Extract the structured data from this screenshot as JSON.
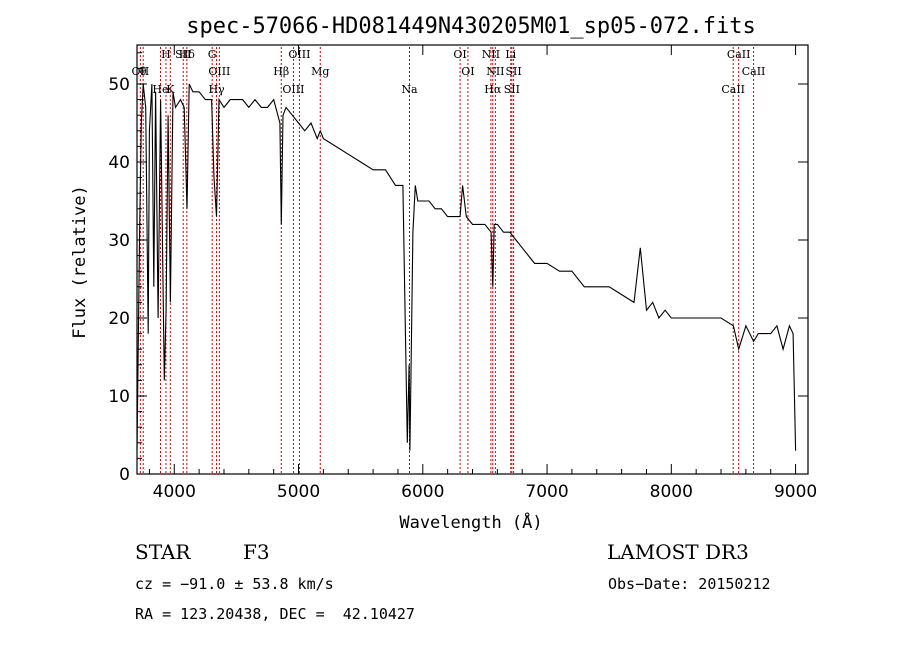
{
  "chart_data": {
    "type": "line",
    "title": "spec-57066-HD081449N430205M01_sp05-072.fits",
    "xlabel": "Wavelength (Å)",
    "ylabel": "Flux (relative)",
    "xlim": [
      3700,
      9100
    ],
    "ylim": [
      0,
      55
    ],
    "xticks": [
      4000,
      5000,
      6000,
      7000,
      8000,
      9000
    ],
    "yticks": [
      0,
      10,
      20,
      30,
      40,
      50
    ],
    "grid": false,
    "series": [
      {
        "name": "spectrum",
        "x": [
          3700,
          3720,
          3735,
          3750,
          3770,
          3790,
          3800,
          3820,
          3835,
          3850,
          3870,
          3890,
          3920,
          3934,
          3950,
          3969,
          3990,
          4010,
          4050,
          4080,
          4102,
          4120,
          4150,
          4200,
          4250,
          4300,
          4320,
          4340,
          4360,
          4400,
          4450,
          4500,
          4550,
          4600,
          4650,
          4700,
          4750,
          4800,
          4850,
          4861,
          4875,
          4900,
          4950,
          5000,
          5050,
          5100,
          5150,
          5175,
          5200,
          5300,
          5400,
          5500,
          5600,
          5700,
          5780,
          5840,
          5875,
          5890,
          5896,
          5905,
          5920,
          5940,
          5960,
          5990,
          6050,
          6100,
          6150,
          6200,
          6250,
          6300,
          6320,
          6350,
          6400,
          6450,
          6500,
          6550,
          6563,
          6575,
          6600,
          6650,
          6700,
          6750,
          6800,
          6850,
          6900,
          7000,
          7100,
          7200,
          7300,
          7400,
          7500,
          7600,
          7700,
          7750,
          7800,
          7850,
          7900,
          7950,
          8000,
          8100,
          8200,
          8300,
          8400,
          8500,
          8542,
          8600,
          8662,
          8700,
          8800,
          8850,
          8900,
          8950,
          8980,
          9000
        ],
        "y": [
          3,
          30,
          45,
          50,
          47,
          18,
          44,
          50,
          24,
          49,
          20,
          48,
          12,
          21,
          46,
          22,
          49,
          47,
          48,
          47,
          34,
          50,
          49,
          49,
          48,
          48,
          38,
          33,
          48,
          47,
          48,
          48,
          48,
          47,
          48,
          47,
          47,
          48,
          45,
          32,
          46,
          47,
          46,
          45,
          44,
          45,
          43,
          44,
          43,
          42,
          41,
          40,
          39,
          39,
          37,
          37,
          4,
          14,
          3,
          13,
          31,
          37,
          35,
          35,
          35,
          34,
          34,
          33,
          33,
          33,
          37,
          33,
          32,
          32,
          32,
          31,
          24,
          32,
          32,
          31,
          31,
          30,
          29,
          28,
          27,
          27,
          26,
          26,
          24,
          24,
          24,
          23,
          22,
          29,
          21,
          22,
          20,
          21,
          20,
          20,
          20,
          20,
          20,
          19,
          16,
          19,
          17,
          18,
          18,
          19,
          16,
          19,
          18,
          3
        ]
      }
    ],
    "line_markers": [
      {
        "label": "CaII H",
        "wave": 3933,
        "text": "H"
      },
      {
        "label": "θ",
        "wave": 3750,
        "text": "θ"
      },
      {
        "label": "K",
        "wave": 3968,
        "text": "K"
      },
      {
        "label": "Hδ",
        "wave": 4101,
        "text": "Hδ"
      },
      {
        "label": "OII",
        "wave": 3727,
        "text": "OII"
      },
      {
        "label": "He",
        "wave": 3889,
        "text": "He"
      },
      {
        "label": "SII",
        "wave": 4072,
        "text": "SII"
      },
      {
        "label": "OIII",
        "wave": 4363,
        "text": "OIII"
      },
      {
        "label": "Hγ",
        "wave": 4340,
        "text": "Hγ"
      },
      {
        "label": "G",
        "wave": 4305,
        "text": "G"
      },
      {
        "label": "Hβ",
        "wave": 4861,
        "text": "Hβ"
      },
      {
        "label": "OIII",
        "wave": 4959,
        "text": "OIII"
      },
      {
        "label": "OIII",
        "wave": 5007,
        "text": "OIII"
      },
      {
        "label": "Mg",
        "wave": 5175,
        "text": "Mg"
      },
      {
        "label": "Na",
        "wave": 5893,
        "text": "Na"
      },
      {
        "label": "OI",
        "wave": 6300,
        "text": "OI"
      },
      {
        "label": "OI",
        "wave": 6363,
        "text": "OI"
      },
      {
        "label": "Hα",
        "wave": 6563,
        "text": "Hα"
      },
      {
        "label": "NII",
        "wave": 6548,
        "text": "NII"
      },
      {
        "label": "NII",
        "wave": 6584,
        "text": "NII"
      },
      {
        "label": "SII",
        "wave": 6717,
        "text": "SII"
      },
      {
        "label": "Li",
        "wave": 6708,
        "text": "Li"
      },
      {
        "label": "SII",
        "wave": 6731,
        "text": "SII"
      },
      {
        "label": "CaII",
        "wave": 8498,
        "text": "CaII"
      },
      {
        "label": "CaII",
        "wave": 8542,
        "text": "CaII"
      },
      {
        "label": "CaII",
        "wave": 8662,
        "text": "CaII"
      }
    ],
    "marker_color": "#cc0000"
  },
  "info": {
    "obj_class": "STAR",
    "subclass": "F3",
    "survey": "LAMOST DR3",
    "cz": "cz = −91.0 ± 53.8 km/s",
    "obs_date": "Obs−Date: 20150212",
    "coords": "RA = 123.20438, DEC =  42.10427"
  }
}
